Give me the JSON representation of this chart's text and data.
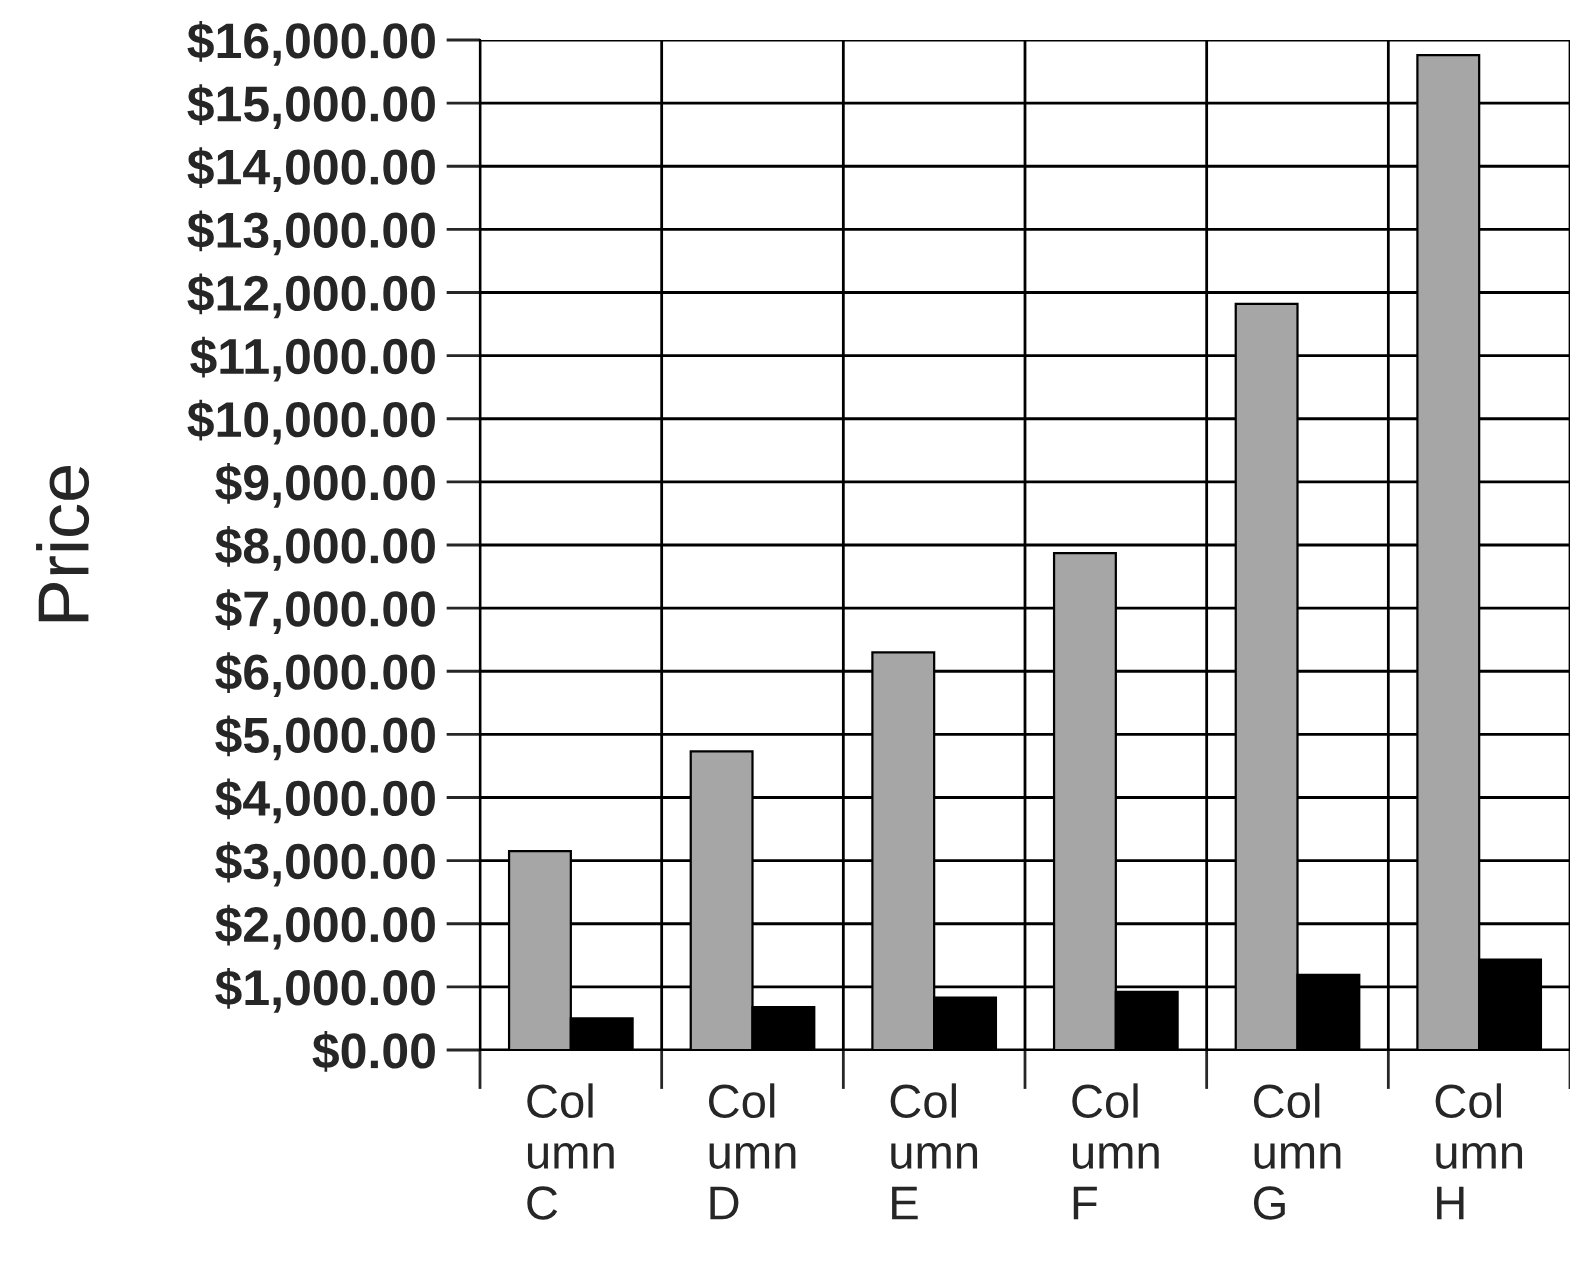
{
  "chart_data": {
    "type": "bar",
    "ylabel": "Price",
    "categories": [
      "Col\numn\nC",
      "Col\numn\nD",
      "Col\numn\nE",
      "Col\numn\nF",
      "Col\numn\nG",
      "Col\numn\nH"
    ],
    "series": [
      {
        "color": "#a6a6a6",
        "values": [
          3150,
          4730,
          6300,
          7870,
          11820,
          15760
        ]
      },
      {
        "color": "#000000",
        "values": [
          500,
          680,
          830,
          920,
          1190,
          1430
        ]
      }
    ],
    "ylim": [
      0,
      16000
    ],
    "yticks": [
      {
        "value": 0,
        "label": "$0.00"
      },
      {
        "value": 1000,
        "label": "$1,000.00"
      },
      {
        "value": 2000,
        "label": "$2,000.00"
      },
      {
        "value": 3000,
        "label": "$3,000.00"
      },
      {
        "value": 4000,
        "label": "$4,000.00"
      },
      {
        "value": 5000,
        "label": "$5,000.00"
      },
      {
        "value": 6000,
        "label": "$6,000.00"
      },
      {
        "value": 7000,
        "label": "$7,000.00"
      },
      {
        "value": 8000,
        "label": "$8,000.00"
      },
      {
        "value": 9000,
        "label": "$9,000.00"
      },
      {
        "value": 10000,
        "label": "$10,000.00"
      },
      {
        "value": 11000,
        "label": "$11,000.00"
      },
      {
        "value": 12000,
        "label": "$12,000.00"
      },
      {
        "value": 13000,
        "label": "$13,000.00"
      },
      {
        "value": 14000,
        "label": "$14,000.00"
      },
      {
        "value": 15000,
        "label": "$15,000.00"
      },
      {
        "value": 16000,
        "label": "$16,000.00"
      }
    ],
    "grid": true
  }
}
